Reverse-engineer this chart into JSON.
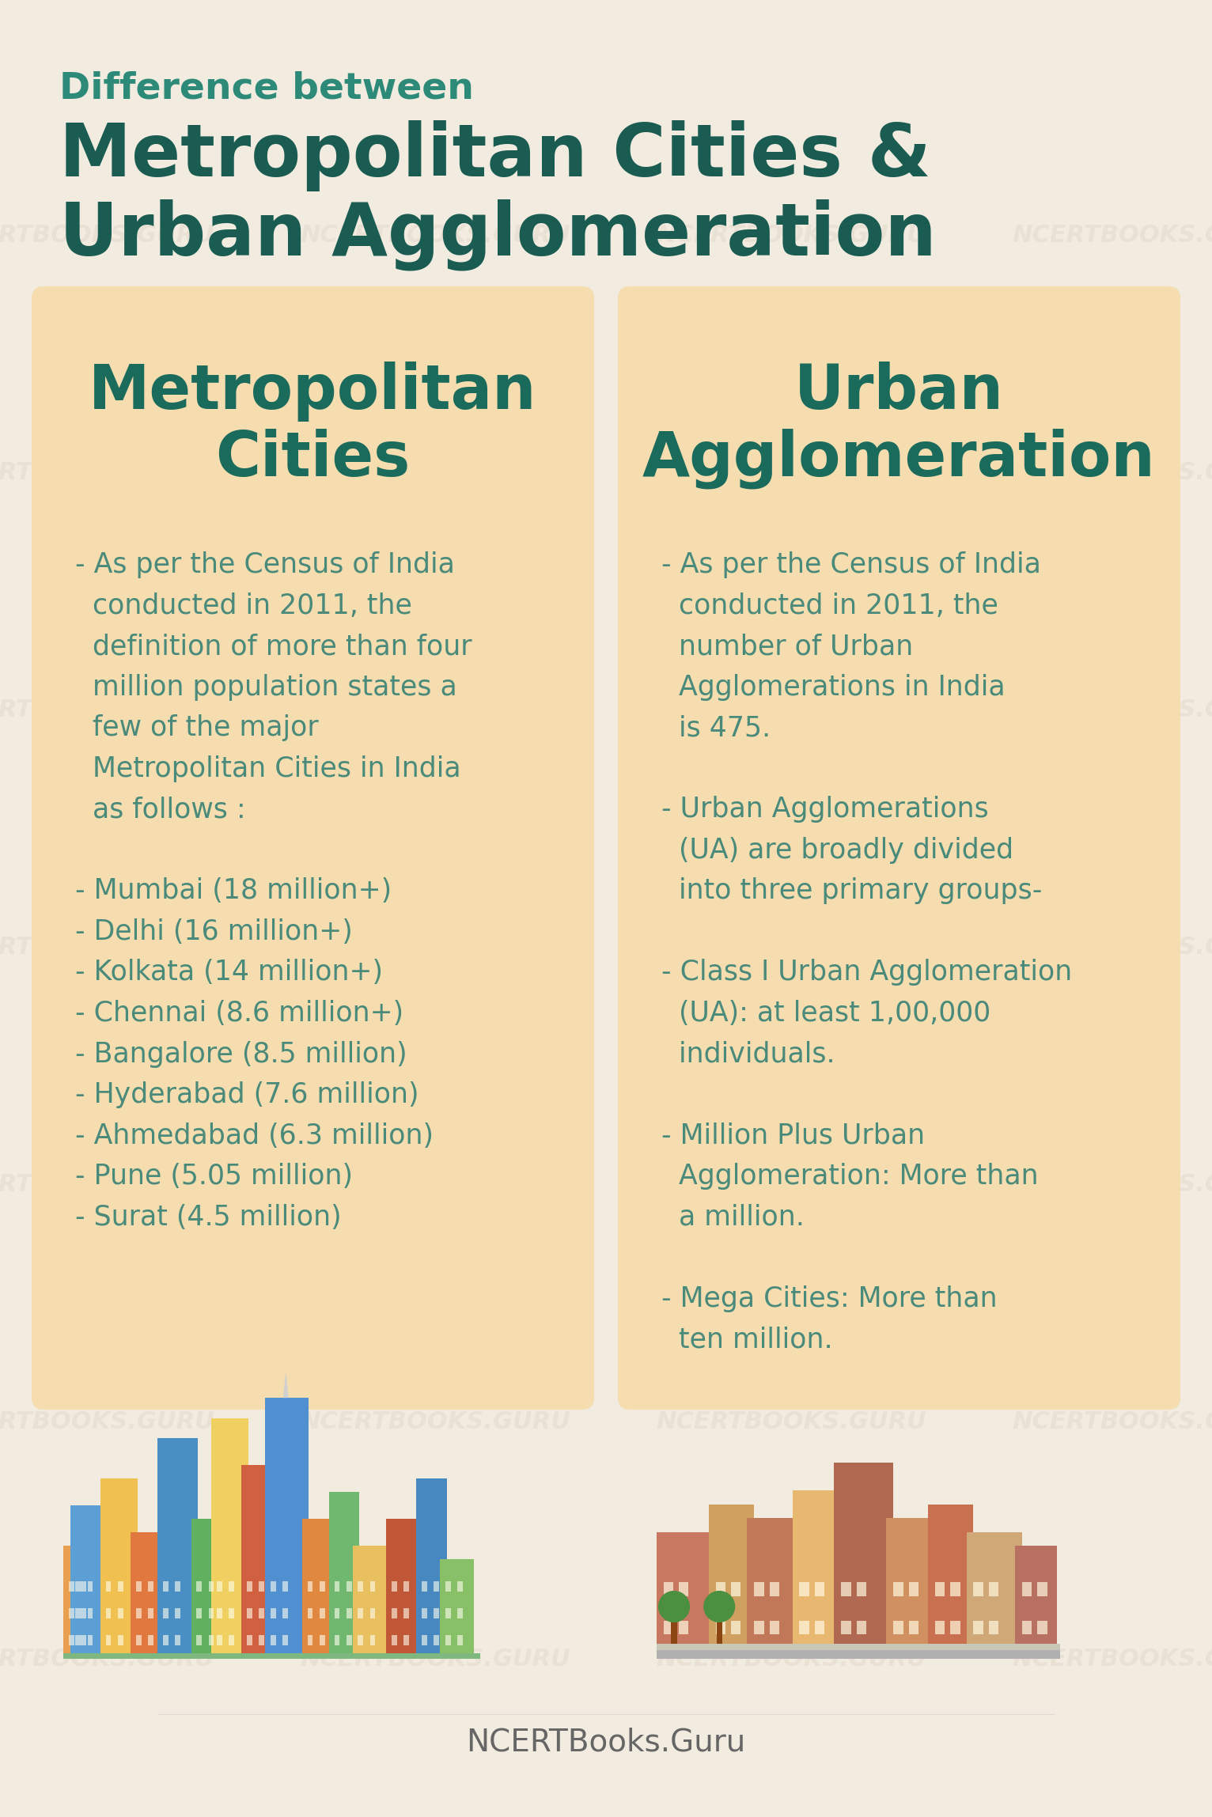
{
  "bg_color": "#f2ece0",
  "title_line1": "Difference between",
  "title_line2": "Metropolitan Cities &",
  "title_line3": "Urban Agglomeration",
  "title_color_line1": "#2d8a78",
  "title_color_bold": "#1a5c52",
  "card_bg": "#f5ddb0",
  "card_border": "#e8c88a",
  "header_color": "#1a6b5c",
  "text_color": "#4a8a7a",
  "left_header": "Metropolitan\nCities",
  "right_header": "Urban\nAgglomeration",
  "left_text": "- As per the Census of India\n  conducted in 2011, the\n  definition of more than four\n  million population states a\n  few of the major\n  Metropolitan Cities in India\n  as follows :\n\n- Mumbai (18 million+)\n- Delhi (16 million+)\n- Kolkata (14 million+)\n- Chennai (8.6 million+)\n- Bangalore (8.5 million)\n- Hyderabad (7.6 million)\n- Ahmedabad (6.3 million)\n- Pune (5.05 million)\n- Surat (4.5 million)",
  "right_text": "- As per the Census of India\n  conducted in 2011, the\n  number of Urban\n  Agglomerations in India\n  is 475.\n\n- Urban Agglomerations\n  (UA) are broadly divided\n  into three primary groups-\n\n- Class I Urban Agglomeration\n  (UA): at least 1,00,000\n  individuals.\n\n- Million Plus Urban\n  Agglomeration: More than\n  a million.\n\n- Mega Cities: More than\n  ten million.",
  "footer": "NCERTBooks.Guru",
  "footer_color": "#666666",
  "watermark_color": "#e5ddd0",
  "divider_color": "#d4b896"
}
